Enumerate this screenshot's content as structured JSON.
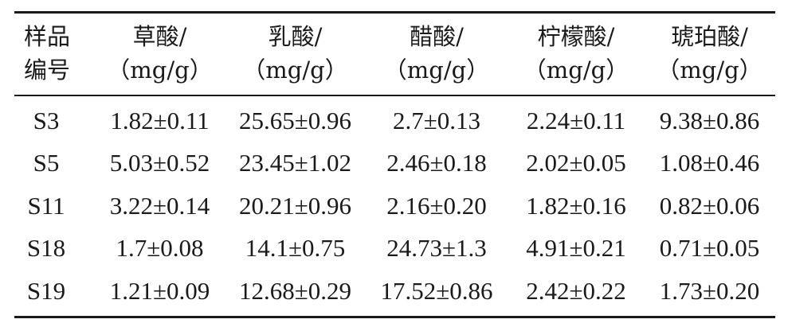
{
  "table": {
    "headers": [
      {
        "line1": "样品",
        "line2": "编号"
      },
      {
        "line1": "草酸/",
        "line2": "（mg/g）"
      },
      {
        "line1": "乳酸/",
        "line2": "（mg/g）"
      },
      {
        "line1": "醋酸/",
        "line2": "（mg/g）"
      },
      {
        "line1": "柠檬酸/",
        "line2": "（mg/g）"
      },
      {
        "line1": "琥珀酸/",
        "line2": "（mg/g）"
      }
    ],
    "rows": [
      [
        "S3",
        "1.82±0.11",
        "25.65±0.96",
        "2.7±0.13",
        "2.24±0.11",
        "9.38±0.86"
      ],
      [
        "S5",
        "5.03±0.52",
        "23.45±1.02",
        "2.46±0.18",
        "2.02±0.05",
        "1.08±0.46"
      ],
      [
        "S11",
        "3.22±0.14",
        "20.21±0.96",
        "2.16±0.20",
        "1.82±0.16",
        "0.82±0.06"
      ],
      [
        "S18",
        "1.7±0.08",
        "14.1±0.75",
        "24.73±1.3",
        "4.91±0.21",
        "0.71±0.05"
      ],
      [
        "S19",
        "1.21±0.09",
        "12.68±0.29",
        "17.52±0.86",
        "2.42±0.22",
        "1.73±0.20"
      ]
    ]
  }
}
